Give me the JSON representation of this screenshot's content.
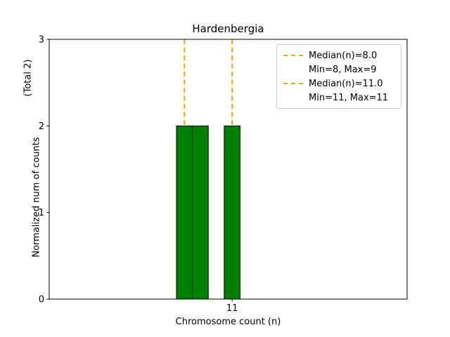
{
  "chart_data": {
    "type": "bar",
    "title": "Hardenbergia",
    "xlabel": "Chromosome count (n)",
    "ylabel": "Normalized num of counts",
    "ylabel_note": "(Total 2)",
    "xlim": [
      -0.5,
      22.0
    ],
    "ylim": [
      0,
      3
    ],
    "xticks": [
      11
    ],
    "yticks": [
      0,
      1,
      2,
      3
    ],
    "grid": false,
    "bar_width": 1,
    "bar_color": "#008000",
    "bar_edge_color": "#000000",
    "bars": [
      {
        "x": 8,
        "height": 2
      },
      {
        "x": 9,
        "height": 2
      },
      {
        "x": 11,
        "height": 2
      }
    ],
    "vlines": [
      {
        "x": 8.0,
        "color": "#FFA500",
        "style": "dashed"
      },
      {
        "x": 11.0,
        "color": "#FFA500",
        "style": "dashed"
      }
    ],
    "legend": {
      "position": "upper right",
      "entries": [
        {
          "line_color": "#FFA500",
          "line_style": "dashed",
          "label_lines": [
            "Median(n)=8.0",
            "Min=8, Max=9"
          ]
        },
        {
          "line_color": "#FFA500",
          "line_style": "dashed",
          "label_lines": [
            "Median(n)=11.0",
            "Min=11, Max=11"
          ]
        }
      ]
    }
  }
}
